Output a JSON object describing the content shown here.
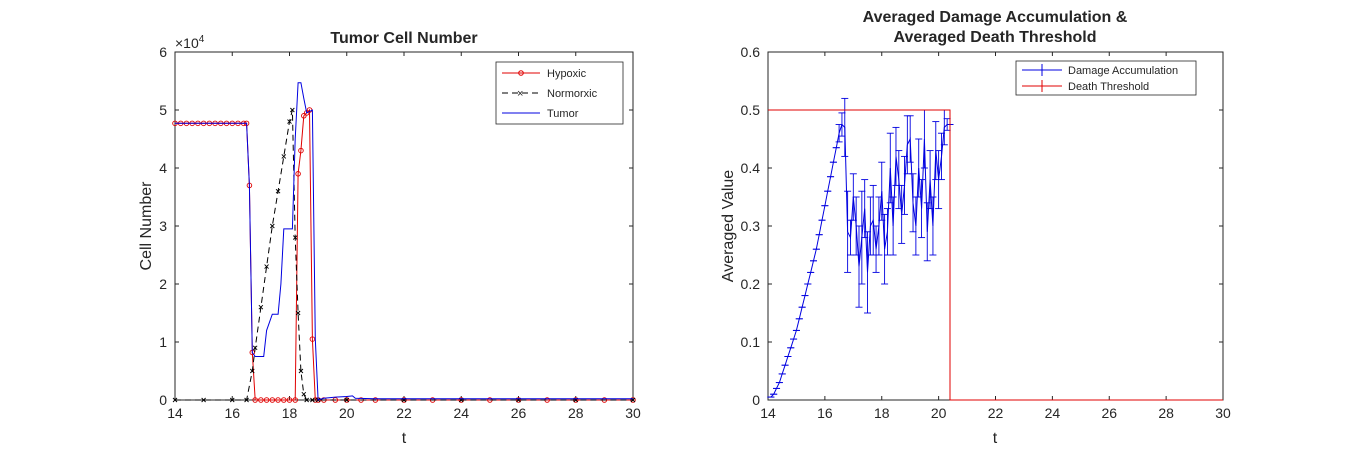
{
  "chart_data": [
    {
      "type": "line",
      "title": "Tumor Cell Number",
      "xlabel": "t",
      "ylabel": "Cell Number",
      "exponent_label": "×10",
      "exponent_power": "4",
      "xlim": [
        14,
        30
      ],
      "ylim": [
        0,
        6
      ],
      "xticks": [
        "14",
        "16",
        "18",
        "20",
        "22",
        "24",
        "26",
        "28",
        "30"
      ],
      "yticks": [
        "0",
        "1",
        "2",
        "3",
        "4",
        "5",
        "6"
      ],
      "legend_position": "top-right",
      "series": [
        {
          "name": "Hypoxic",
          "color": "#e00000",
          "marker": "circle",
          "x": [
            14,
            14.2,
            14.4,
            14.6,
            14.8,
            15,
            15.2,
            15.4,
            15.6,
            15.8,
            16,
            16.2,
            16.4,
            16.5,
            16.6,
            16.7,
            16.8,
            17,
            17.2,
            17.4,
            17.6,
            17.8,
            18,
            18.2,
            18.3,
            18.4,
            18.5,
            18.6,
            18.7,
            18.8,
            18.9,
            19,
            19.2,
            19.6,
            20,
            20.5,
            21,
            22,
            23,
            24,
            25,
            26,
            27,
            28,
            29,
            30
          ],
          "values": [
            4.77,
            4.77,
            4.77,
            4.77,
            4.77,
            4.77,
            4.77,
            4.77,
            4.77,
            4.77,
            4.77,
            4.77,
            4.77,
            4.77,
            3.7,
            0.82,
            0,
            0,
            0,
            0,
            0,
            0,
            0,
            0,
            3.9,
            4.3,
            4.9,
            4.95,
            5.0,
            1.05,
            0,
            0,
            0,
            0,
            0,
            0,
            0,
            0,
            0,
            0,
            0,
            0,
            0,
            0,
            0,
            0
          ]
        },
        {
          "name": "Normorxic",
          "color": "#000000",
          "marker": "x",
          "x": [
            14,
            15,
            16,
            16.5,
            16.7,
            16.8,
            17,
            17.2,
            17.4,
            17.6,
            17.8,
            18,
            18.1,
            18.2,
            18.3,
            18.4,
            18.5,
            18.6,
            18.8,
            19,
            20,
            22,
            24,
            26,
            28,
            30
          ],
          "values": [
            0,
            0,
            0,
            0,
            0.5,
            0.9,
            1.6,
            2.3,
            3.0,
            3.6,
            4.2,
            4.8,
            5.0,
            2.8,
            1.5,
            0.5,
            0.1,
            0,
            0,
            0,
            0,
            0,
            0,
            0,
            0,
            0
          ]
        },
        {
          "name": "Tumor",
          "color": "#0000e0",
          "marker": "none",
          "x": [
            14,
            16.5,
            16.6,
            16.7,
            16.8,
            17,
            17.1,
            17.2,
            17.4,
            17.5,
            17.6,
            17.7,
            17.8,
            18,
            18.1,
            18.2,
            18.3,
            18.4,
            18.5,
            18.6,
            18.8,
            18.9,
            19,
            19.2,
            19.6,
            20,
            20.2,
            20.3,
            21,
            22,
            24,
            26,
            28,
            30
          ],
          "values": [
            4.77,
            4.77,
            3.7,
            0.82,
            0.75,
            0.75,
            0.75,
            1.2,
            1.48,
            1.48,
            1.48,
            2.0,
            2.95,
            2.95,
            2.95,
            4.5,
            5.47,
            5.47,
            5.2,
            4.95,
            5.0,
            1.05,
            0,
            0.03,
            0.05,
            0.06,
            0.07,
            0.03,
            0.02,
            0.02,
            0.02,
            0.02,
            0.02,
            0.02
          ]
        }
      ]
    },
    {
      "type": "line",
      "title": "Averaged Damage Accumulation &",
      "title_line2": "Averaged Death Threshold",
      "xlabel": "t",
      "ylabel": "Averaged Value",
      "xlim": [
        14,
        30
      ],
      "ylim": [
        0,
        0.6
      ],
      "xticks": [
        "14",
        "16",
        "18",
        "20",
        "22",
        "24",
        "26",
        "28",
        "30"
      ],
      "yticks": [
        "0",
        "0.1",
        "0.2",
        "0.3",
        "0.4",
        "0.5",
        "0.6"
      ],
      "legend_position": "top-right",
      "series": [
        {
          "name": "Damage Accumulation",
          "color": "#0000e0",
          "errorbars": true,
          "x": [
            14.1,
            14.2,
            14.3,
            14.4,
            14.5,
            14.6,
            14.7,
            14.8,
            14.9,
            15,
            15.1,
            15.2,
            15.3,
            15.4,
            15.5,
            15.6,
            15.7,
            15.8,
            15.9,
            16,
            16.1,
            16.2,
            16.3,
            16.4,
            16.5,
            16.6,
            16.7,
            16.8,
            16.9,
            17,
            17.1,
            17.2,
            17.3,
            17.4,
            17.5,
            17.6,
            17.7,
            17.8,
            17.9,
            18,
            18.1,
            18.2,
            18.3,
            18.4,
            18.5,
            18.6,
            18.7,
            18.8,
            18.9,
            19,
            19.1,
            19.2,
            19.3,
            19.4,
            19.5,
            19.6,
            19.7,
            19.8,
            19.9,
            20,
            20.1,
            20.2,
            20.3,
            20.4
          ],
          "values": [
            0.005,
            0.01,
            0.02,
            0.03,
            0.045,
            0.06,
            0.075,
            0.09,
            0.105,
            0.12,
            0.14,
            0.16,
            0.18,
            0.2,
            0.22,
            0.24,
            0.26,
            0.285,
            0.31,
            0.335,
            0.36,
            0.385,
            0.41,
            0.435,
            0.46,
            0.475,
            0.47,
            0.29,
            0.28,
            0.35,
            0.3,
            0.23,
            0.28,
            0.33,
            0.22,
            0.3,
            0.31,
            0.26,
            0.3,
            0.36,
            0.26,
            0.29,
            0.4,
            0.3,
            0.42,
            0.38,
            0.32,
            0.37,
            0.44,
            0.45,
            0.34,
            0.3,
            0.4,
            0.33,
            0.45,
            0.29,
            0.38,
            0.3,
            0.43,
            0.38,
            0.42,
            0.47,
            0.475,
            0.475
          ],
          "errors": [
            0,
            0,
            0,
            0,
            0,
            0,
            0,
            0,
            0,
            0,
            0,
            0,
            0,
            0,
            0,
            0,
            0,
            0,
            0,
            0,
            0,
            0,
            0,
            0,
            0.015,
            0.02,
            0.05,
            0.07,
            0.03,
            0.04,
            0.05,
            0.07,
            0.08,
            0.05,
            0.07,
            0.05,
            0.06,
            0.04,
            0.05,
            0.05,
            0.06,
            0.04,
            0.06,
            0.05,
            0.05,
            0.05,
            0.05,
            0.05,
            0.05,
            0.04,
            0.05,
            0.05,
            0.05,
            0.05,
            0.05,
            0.05,
            0.05,
            0.05,
            0.05,
            0.05,
            0.04,
            0.03,
            0.01,
            0
          ]
        },
        {
          "name": "Death Threshold",
          "color": "#e00000",
          "errorbars": false,
          "x": [
            14,
            20.4,
            20.4,
            30
          ],
          "values": [
            0.5,
            0.5,
            0,
            0
          ]
        }
      ]
    }
  ]
}
